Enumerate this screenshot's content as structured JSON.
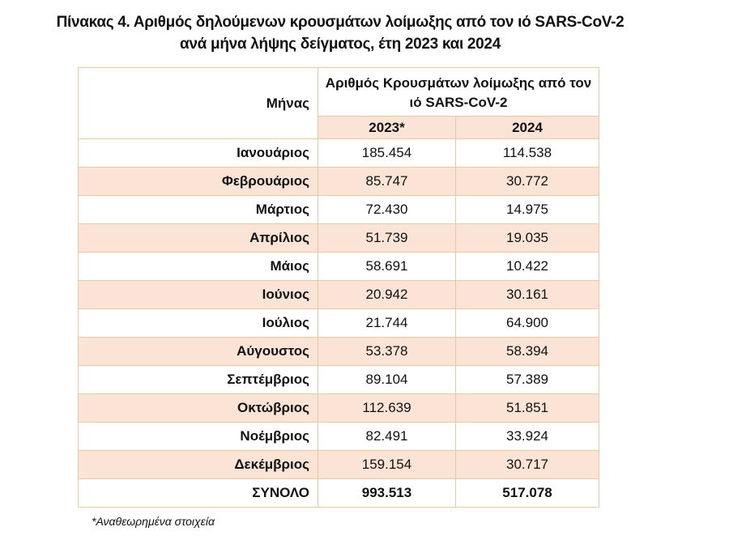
{
  "title": {
    "line1": "Πίνακας 4. Αριθμός δηλούμενων κρουσμάτων λοίμωξης από τον ιό SARS-CoV-2",
    "line2": "ανά μήνα λήψης δείγματος, έτη 2023 και 2024"
  },
  "table": {
    "header": {
      "month_label": "Μήνας",
      "group_label": "Αριθμός Κρουσμάτων λοίμωξης από τον ιό SARS-CoV-2",
      "years": [
        "2023*",
        "2024"
      ]
    },
    "rows": [
      {
        "month": "Ιανουάριος",
        "y2023": "185.454",
        "y2024": "114.538"
      },
      {
        "month": "Φεβρουάριος",
        "y2023": "85.747",
        "y2024": "30.772"
      },
      {
        "month": "Μάρτιος",
        "y2023": "72.430",
        "y2024": "14.975"
      },
      {
        "month": "Απρίλιος",
        "y2023": "51.739",
        "y2024": "19.035"
      },
      {
        "month": "Μάιος",
        "y2023": "58.691",
        "y2024": "10.422"
      },
      {
        "month": "Ιούνιος",
        "y2023": "20.942",
        "y2024": "30.161"
      },
      {
        "month": "Ιούλιος",
        "y2023": "21.744",
        "y2024": "64.900"
      },
      {
        "month": "Αύγουστος",
        "y2023": "53.378",
        "y2024": "58.394"
      },
      {
        "month": "Σεπτέμβριος",
        "y2023": "89.104",
        "y2024": "57.389"
      },
      {
        "month": "Οκτώβριος",
        "y2023": "112.639",
        "y2024": "51.851"
      },
      {
        "month": "Νοέμβριος",
        "y2023": "82.491",
        "y2024": "33.924"
      },
      {
        "month": "Δεκέμβριος",
        "y2023": "159.154",
        "y2024": "30.717"
      }
    ],
    "total": {
      "label": "ΣΥΝΟΛΟ",
      "y2023": "993.513",
      "y2024": "517.078"
    }
  },
  "footnote": "*Αναθεωρημένα στοιχεία",
  "colors": {
    "border": "#e8c9a5",
    "shade": "#fbe4d5"
  }
}
